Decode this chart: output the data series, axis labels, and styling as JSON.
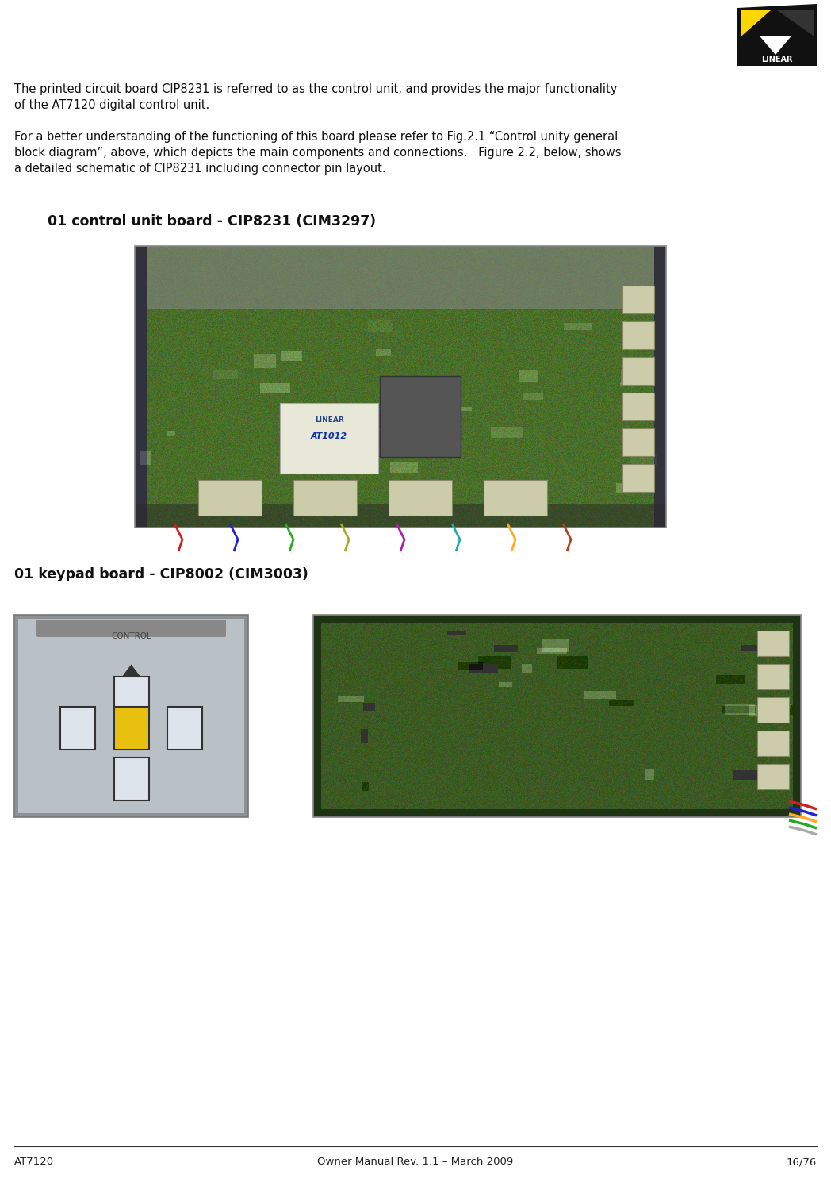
{
  "bg_color": "#ffffff",
  "footer_left": "AT7120",
  "footer_center": "Owner Manual Rev. 1.1 – March 2009",
  "footer_right": "16/76",
  "footer_fontsize": 9.5,
  "para1": "The printed circuit board CIP8231 is referred to as the control unit, and provides the major functionality\nof the AT7120 digital control unit.",
  "para1_fontsize": 10.5,
  "para2": "For a better understanding of the functioning of this board please refer to Fig.2.1 “Control unity general\nblock diagram”, above, which depicts the main components and connections.   Figure 2.2, below, shows\na detailed schematic of CIP8231 including connector pin layout.",
  "para2_fontsize": 10.5,
  "heading1": "01 control unit board - CIP8231 (CIM3297)",
  "heading1_fontsize": 12.5,
  "heading2": "01 keypad board - CIP8002 (CIM3003)",
  "heading2_fontsize": 12.5,
  "pcb_green": "#4a6e2a",
  "pcb_green2": "#527530",
  "pcb_dark": "#3a5520",
  "keypad_bg": "#b8bec4",
  "keypad_btn_white": "#dde2e8",
  "keypad_btn_yellow": "#e8c010",
  "logo_black": "#111111",
  "logo_yellow": "#FFD700"
}
